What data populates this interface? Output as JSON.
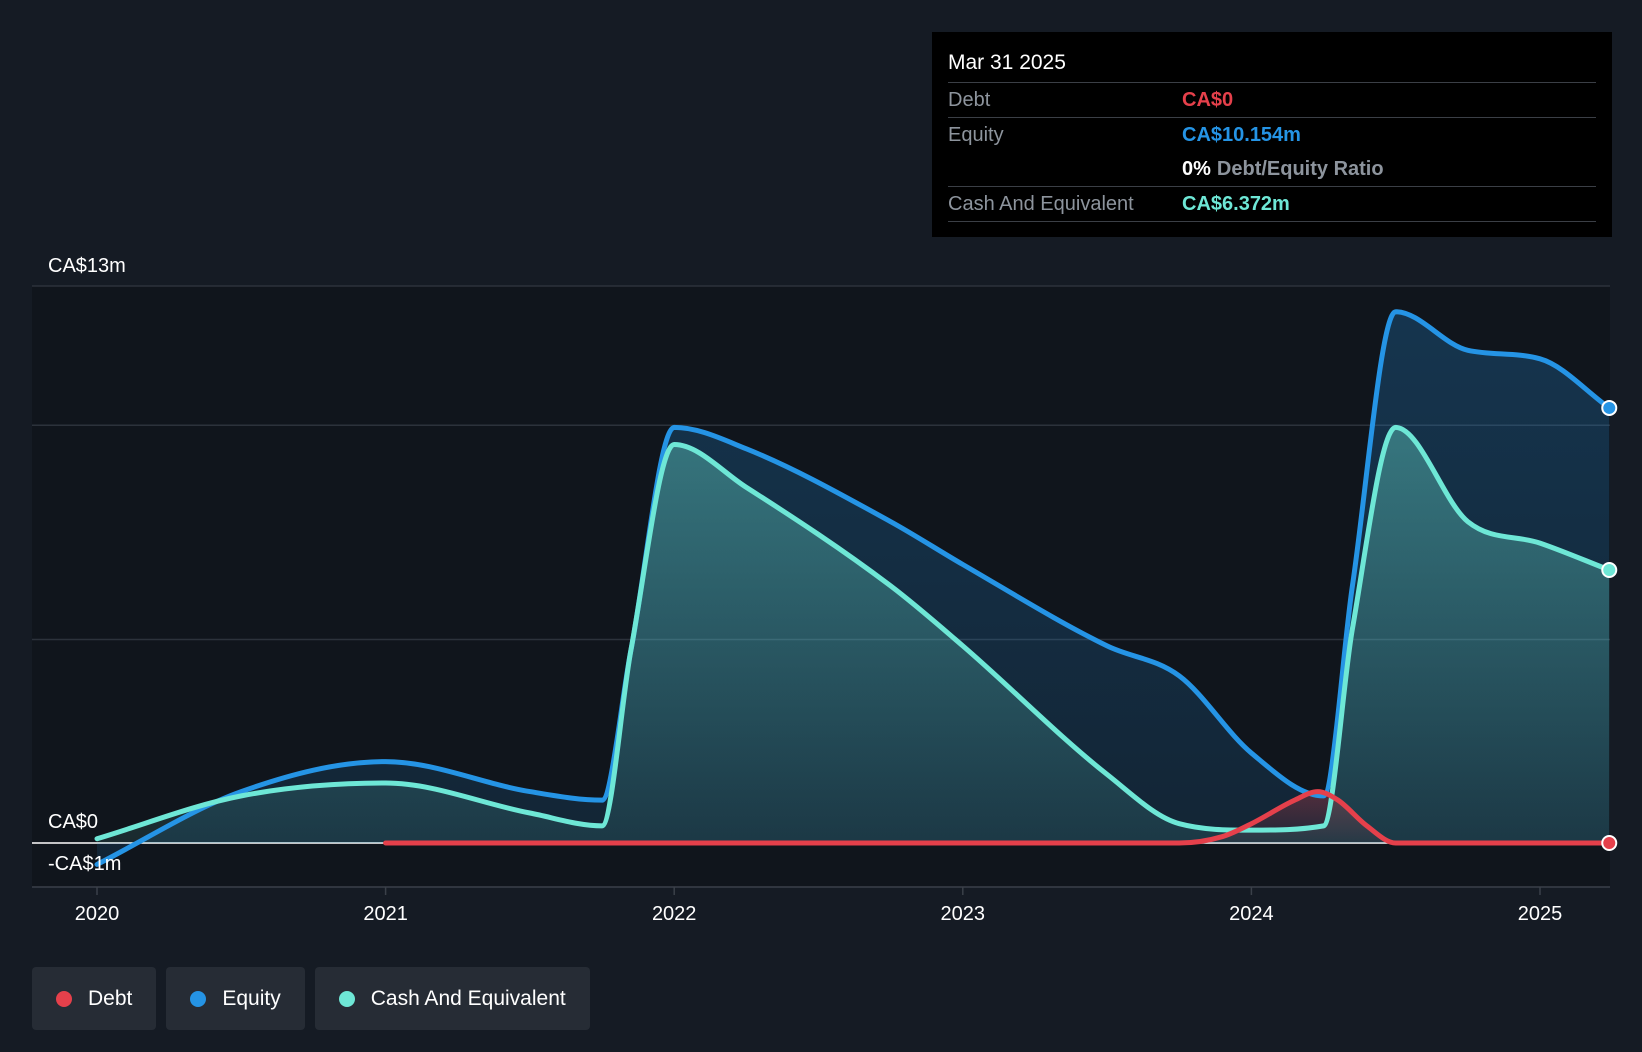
{
  "tooltip": {
    "date": "Mar 31 2025",
    "debt_label": "Debt",
    "debt_value": "CA$0",
    "equity_label": "Equity",
    "equity_value": "CA$10.154m",
    "ratio_pct": "0%",
    "ratio_label": "Debt/Equity Ratio",
    "cash_label": "Cash And Equivalent",
    "cash_value": "CA$6.372m"
  },
  "legend": [
    {
      "label": "Debt",
      "color": "#e5404b"
    },
    {
      "label": "Equity",
      "color": "#2594e5"
    },
    {
      "label": "Cash And Equivalent",
      "color": "#6ee7d6"
    }
  ],
  "colors": {
    "debt": "#e5404b",
    "equity": "#2594e5",
    "cash": "#6ee7d6",
    "background": "#151b24",
    "plot_background": "#10151c"
  },
  "chart_data": {
    "type": "area",
    "title": "",
    "xlabel": "",
    "ylabel": "",
    "x_ticks": [
      "2020",
      "2021",
      "2022",
      "2023",
      "2024",
      "2025"
    ],
    "y_ticks": [
      {
        "value": 13,
        "label": "CA$13m"
      },
      {
        "value": 0,
        "label": "CA$0"
      },
      {
        "value": -1,
        "label": "-CA$1m"
      }
    ],
    "ylim": [
      -1,
      13
    ],
    "xlim": [
      2019.78,
      2025.24
    ],
    "grid": true,
    "legend_position": "bottom-left",
    "series": [
      {
        "name": "Debt",
        "color": "#e5404b",
        "x": [
          2021.0,
          2021.5,
          2022.0,
          2022.5,
          2023.0,
          2023.5,
          2023.75,
          2023.9,
          2024.0,
          2024.15,
          2024.23,
          2024.3,
          2024.4,
          2024.5,
          2024.75,
          2025.0,
          2025.24
        ],
        "values": [
          0.0,
          0.0,
          0.0,
          0.0,
          0.0,
          0.0,
          0.0,
          0.15,
          0.45,
          1.0,
          1.2,
          1.0,
          0.4,
          0.0,
          0.0,
          0.0,
          0.0
        ]
      },
      {
        "name": "Equity",
        "color": "#2594e5",
        "x": [
          2020.0,
          2020.5,
          2021.0,
          2021.5,
          2021.75,
          2021.85,
          2022.0,
          2022.25,
          2022.75,
          2023.0,
          2023.5,
          2023.75,
          2024.0,
          2024.25,
          2024.35,
          2024.5,
          2024.75,
          2025.0,
          2025.24
        ],
        "values": [
          -0.5,
          1.2,
          1.9,
          1.2,
          1.0,
          4.5,
          9.7,
          9.2,
          7.5,
          6.5,
          4.6,
          3.9,
          2.1,
          1.1,
          6.0,
          12.4,
          11.5,
          11.3,
          10.154
        ]
      },
      {
        "name": "Cash And Equivalent",
        "color": "#6ee7d6",
        "x": [
          2020.0,
          2020.5,
          2021.0,
          2021.5,
          2021.75,
          2021.85,
          2022.0,
          2022.25,
          2022.75,
          2023.0,
          2023.5,
          2023.75,
          2024.0,
          2024.25,
          2024.35,
          2024.5,
          2024.75,
          2025.0,
          2025.24
        ],
        "values": [
          0.1,
          1.1,
          1.4,
          0.7,
          0.4,
          4.5,
          9.3,
          8.3,
          6.0,
          4.6,
          1.6,
          0.45,
          0.3,
          0.4,
          5.0,
          9.7,
          7.5,
          7.0,
          6.372
        ]
      }
    ]
  }
}
